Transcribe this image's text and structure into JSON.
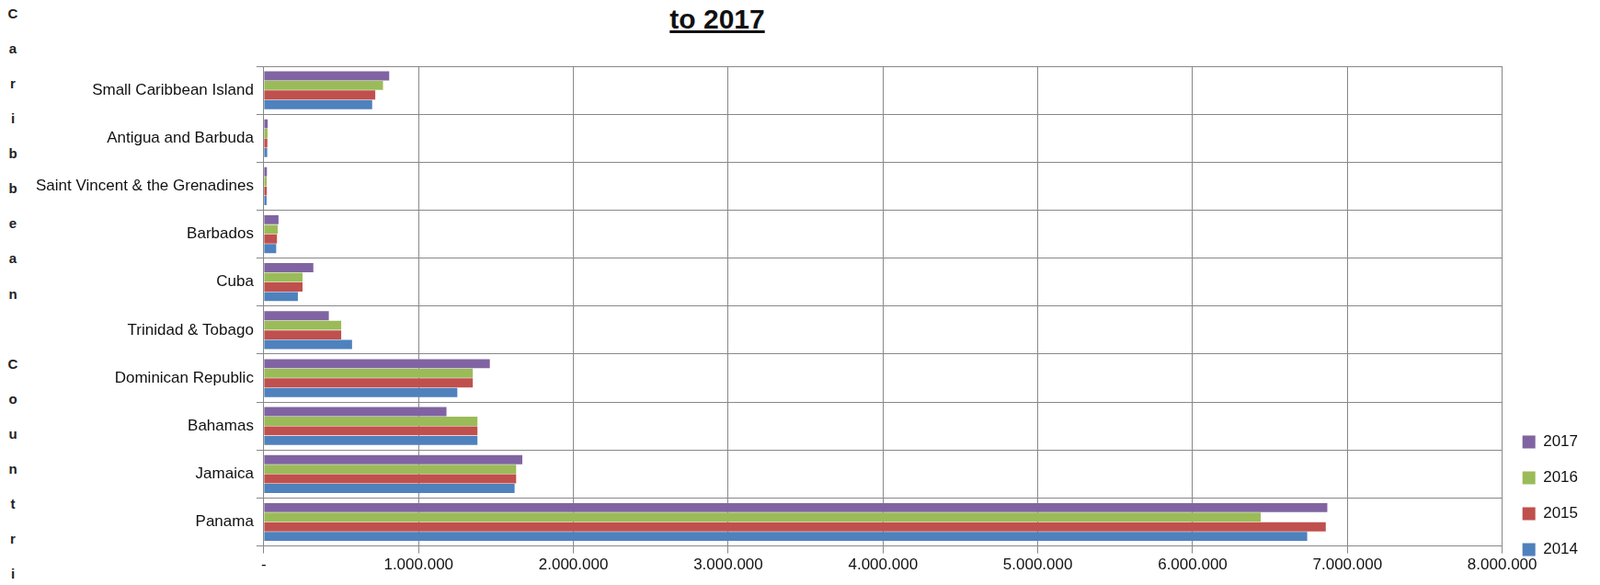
{
  "chart_data": {
    "type": "bar",
    "orientation": "horizontal",
    "title": "to 2017",
    "y_label": "Caribbean Countri",
    "categories": [
      "Small Caribbean Island",
      "Antigua and Barbuda",
      "Saint Vincent & the Grenadines",
      "Barbados",
      "Cuba",
      "Trinidad & Tobago",
      "Dominican Republic",
      "Bahamas",
      "Jamaica",
      "Panama"
    ],
    "series": [
      {
        "name": "2017",
        "color": "#8064a2",
        "values": [
          810000,
          25000,
          20000,
          95000,
          320000,
          420000,
          1460000,
          1180000,
          1670000,
          6870000
        ]
      },
      {
        "name": "2016",
        "color": "#9bbb59",
        "values": [
          770000,
          24000,
          19000,
          90000,
          250000,
          500000,
          1350000,
          1380000,
          1630000,
          6440000
        ]
      },
      {
        "name": "2015",
        "color": "#c0504d",
        "values": [
          720000,
          23000,
          19000,
          85000,
          250000,
          500000,
          1350000,
          1380000,
          1630000,
          6860000
        ]
      },
      {
        "name": "2014",
        "color": "#4f81bd",
        "values": [
          700000,
          22000,
          18000,
          80000,
          220000,
          570000,
          1250000,
          1380000,
          1620000,
          6740000
        ]
      }
    ],
    "xlim": [
      0,
      8000000
    ],
    "xticks": [
      {
        "value": 0,
        "label": "-"
      },
      {
        "value": 1000000,
        "label": "1.000.000"
      },
      {
        "value": 2000000,
        "label": "2.000.000"
      },
      {
        "value": 3000000,
        "label": "3.000.000"
      },
      {
        "value": 4000000,
        "label": "4.000.000"
      },
      {
        "value": 5000000,
        "label": "5.000.000"
      },
      {
        "value": 6000000,
        "label": "6.000.000"
      },
      {
        "value": 7000000,
        "label": "7.000.000"
      },
      {
        "value": 8000000,
        "label": "8.000.000"
      }
    ],
    "grid": true,
    "legend": "right"
  }
}
